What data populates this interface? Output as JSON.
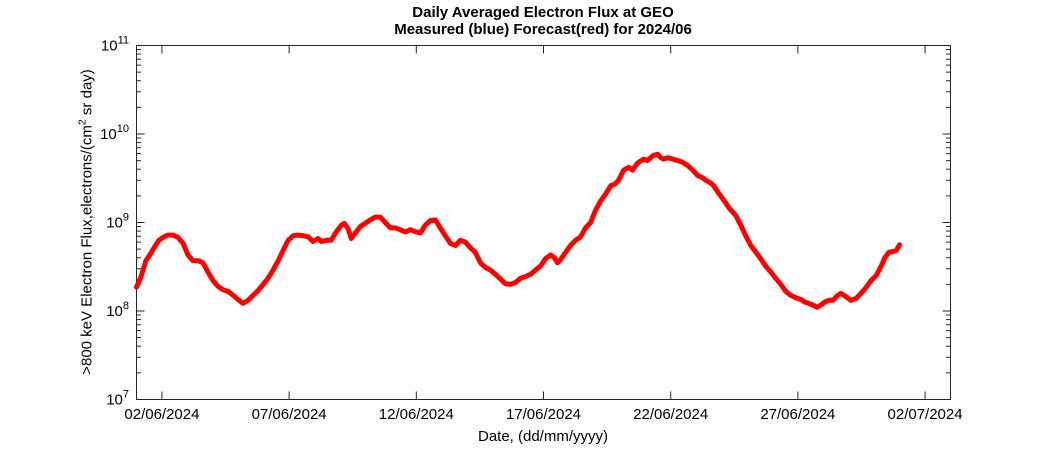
{
  "chart_data": {
    "type": "line",
    "title": "Daily Averaged Electron Flux at GEO",
    "subtitle": "Measured (blue) Forecast(red) for 2024/06",
    "xlabel": "Date, (dd/mm/yyyy)",
    "ylabel": ">800 keV Electron Flux,electrons/(cm^2 sr day)",
    "ylabel_parts": {
      "prefix": ">800 keV Electron Flux,electrons/(cm",
      "superscript": "2",
      "suffix": " sr day)"
    },
    "y_scale": "log",
    "ylim": [
      10000000.0,
      100000000000.0
    ],
    "y_tick_exponents": [
      7,
      8,
      9,
      10,
      11
    ],
    "x_range_days": [
      0,
      32
    ],
    "x_ticks": [
      {
        "day": 1,
        "label": "02/06/2024"
      },
      {
        "day": 6,
        "label": "07/06/2024"
      },
      {
        "day": 11,
        "label": "12/06/2024"
      },
      {
        "day": 16,
        "label": "17/06/2024"
      },
      {
        "day": 21,
        "label": "22/06/2024"
      },
      {
        "day": 26,
        "label": "27/06/2024"
      },
      {
        "day": 31,
        "label": "02/07/2024"
      }
    ],
    "grid": false,
    "legend": [
      {
        "name": "Measured",
        "color": "blue",
        "shown_in_plot": false
      },
      {
        "name": "Forecast",
        "color": "red",
        "shown_in_plot": true
      }
    ],
    "colors": {
      "forecast_line": "#ff0000",
      "axis": "#262626",
      "text": "#000000",
      "background": "#ffffff"
    },
    "series": [
      {
        "name": "Forecast",
        "color": "#ff0000",
        "line_width": 5,
        "points": [
          [
            0.0,
            186000000.0
          ],
          [
            0.17,
            240000000.0
          ],
          [
            0.37,
            370000000.0
          ],
          [
            0.57,
            450000000.0
          ],
          [
            0.69,
            520000000.0
          ],
          [
            0.88,
            630000000.0
          ],
          [
            1.08,
            690000000.0
          ],
          [
            1.24,
            720000000.0
          ],
          [
            1.43,
            720000000.0
          ],
          [
            1.63,
            680000000.0
          ],
          [
            1.83,
            580000000.0
          ],
          [
            2.02,
            430000000.0
          ],
          [
            2.22,
            370000000.0
          ],
          [
            2.42,
            370000000.0
          ],
          [
            2.61,
            350000000.0
          ],
          [
            2.81,
            275000000.0
          ],
          [
            3.01,
            220000000.0
          ],
          [
            3.2,
            190000000.0
          ],
          [
            3.4,
            174000000.0
          ],
          [
            3.6,
            166000000.0
          ],
          [
            3.8,
            150000000.0
          ],
          [
            3.99,
            135000000.0
          ],
          [
            4.19,
            122000000.0
          ],
          [
            4.39,
            132000000.0
          ],
          [
            4.58,
            150000000.0
          ],
          [
            4.78,
            170000000.0
          ],
          [
            4.98,
            200000000.0
          ],
          [
            5.17,
            234000000.0
          ],
          [
            5.37,
            290000000.0
          ],
          [
            5.57,
            370000000.0
          ],
          [
            5.76,
            480000000.0
          ],
          [
            5.96,
            630000000.0
          ],
          [
            6.16,
            710000000.0
          ],
          [
            6.35,
            720000000.0
          ],
          [
            6.55,
            710000000.0
          ],
          [
            6.75,
            690000000.0
          ],
          [
            6.94,
            610000000.0
          ],
          [
            7.14,
            660000000.0
          ],
          [
            7.26,
            610000000.0
          ],
          [
            7.46,
            630000000.0
          ],
          [
            7.65,
            630000000.0
          ],
          [
            7.85,
            780000000.0
          ],
          [
            8.05,
            930000000.0
          ],
          [
            8.17,
            980000000.0
          ],
          [
            8.32,
            850000000.0
          ],
          [
            8.44,
            660000000.0
          ],
          [
            8.6,
            760000000.0
          ],
          [
            8.8,
            900000000.0
          ],
          [
            8.99,
            980000000.0
          ],
          [
            9.19,
            1070000000.0
          ],
          [
            9.39,
            1150000000.0
          ],
          [
            9.58,
            1150000000.0
          ],
          [
            9.78,
            1000000000.0
          ],
          [
            9.98,
            870000000.0
          ],
          [
            10.17,
            870000000.0
          ],
          [
            10.37,
            830000000.0
          ],
          [
            10.57,
            780000000.0
          ],
          [
            10.76,
            830000000.0
          ],
          [
            10.96,
            790000000.0
          ],
          [
            11.16,
            760000000.0
          ],
          [
            11.35,
            930000000.0
          ],
          [
            11.55,
            1050000000.0
          ],
          [
            11.75,
            1070000000.0
          ],
          [
            11.94,
            870000000.0
          ],
          [
            12.14,
            710000000.0
          ],
          [
            12.34,
            580000000.0
          ],
          [
            12.54,
            550000000.0
          ],
          [
            12.73,
            630000000.0
          ],
          [
            12.93,
            600000000.0
          ],
          [
            13.12,
            520000000.0
          ],
          [
            13.32,
            460000000.0
          ],
          [
            13.52,
            350000000.0
          ],
          [
            13.72,
            310000000.0
          ],
          [
            13.91,
            290000000.0
          ],
          [
            14.11,
            260000000.0
          ],
          [
            14.31,
            230000000.0
          ],
          [
            14.5,
            204000000.0
          ],
          [
            14.7,
            200000000.0
          ],
          [
            14.9,
            210000000.0
          ],
          [
            15.09,
            234000000.0
          ],
          [
            15.29,
            245000000.0
          ],
          [
            15.49,
            260000000.0
          ],
          [
            15.68,
            290000000.0
          ],
          [
            15.88,
            320000000.0
          ],
          [
            16.08,
            390000000.0
          ],
          [
            16.28,
            430000000.0
          ],
          [
            16.43,
            400000000.0
          ],
          [
            16.55,
            350000000.0
          ],
          [
            16.67,
            380000000.0
          ],
          [
            16.87,
            460000000.0
          ],
          [
            17.06,
            550000000.0
          ],
          [
            17.26,
            630000000.0
          ],
          [
            17.46,
            690000000.0
          ],
          [
            17.65,
            870000000.0
          ],
          [
            17.85,
            1000000000.0
          ],
          [
            18.05,
            1380000000.0
          ],
          [
            18.24,
            1740000000.0
          ],
          [
            18.44,
            2100000000.0
          ],
          [
            18.64,
            2600000000.0
          ],
          [
            18.83,
            2750000000.0
          ],
          [
            18.95,
            3000000000.0
          ],
          [
            19.15,
            3900000000.0
          ],
          [
            19.35,
            4200000000.0
          ],
          [
            19.5,
            3900000000.0
          ],
          [
            19.62,
            4400000000.0
          ],
          [
            19.74,
            4800000000.0
          ],
          [
            19.94,
            5200000000.0
          ],
          [
            20.09,
            5000000000.0
          ],
          [
            20.21,
            5400000000.0
          ],
          [
            20.33,
            5750000000.0
          ],
          [
            20.49,
            5900000000.0
          ],
          [
            20.61,
            5400000000.0
          ],
          [
            20.72,
            5200000000.0
          ],
          [
            20.88,
            5400000000.0
          ],
          [
            21.08,
            5200000000.0
          ],
          [
            21.28,
            5000000000.0
          ],
          [
            21.47,
            4800000000.0
          ],
          [
            21.67,
            4400000000.0
          ],
          [
            21.87,
            3900000000.0
          ],
          [
            22.06,
            3400000000.0
          ],
          [
            22.26,
            3200000000.0
          ],
          [
            22.38,
            3000000000.0
          ],
          [
            22.57,
            2800000000.0
          ],
          [
            22.69,
            2600000000.0
          ],
          [
            22.89,
            2140000000.0
          ],
          [
            23.09,
            1780000000.0
          ],
          [
            23.28,
            1480000000.0
          ],
          [
            23.4,
            1350000000.0
          ],
          [
            23.56,
            1200000000.0
          ],
          [
            23.76,
            930000000.0
          ],
          [
            23.95,
            710000000.0
          ],
          [
            24.15,
            550000000.0
          ],
          [
            24.35,
            460000000.0
          ],
          [
            24.54,
            390000000.0
          ],
          [
            24.74,
            320000000.0
          ],
          [
            24.94,
            275000000.0
          ],
          [
            25.13,
            234000000.0
          ],
          [
            25.33,
            200000000.0
          ],
          [
            25.53,
            166000000.0
          ],
          [
            25.72,
            150000000.0
          ],
          [
            25.92,
            141000000.0
          ],
          [
            26.12,
            135000000.0
          ],
          [
            26.28,
            126000000.0
          ],
          [
            26.43,
            122000000.0
          ],
          [
            26.63,
            115000000.0
          ],
          [
            26.75,
            110000000.0
          ],
          [
            26.91,
            117000000.0
          ],
          [
            27.06,
            126000000.0
          ],
          [
            27.22,
            132000000.0
          ],
          [
            27.38,
            132000000.0
          ],
          [
            27.54,
            148000000.0
          ],
          [
            27.69,
            158000000.0
          ],
          [
            27.89,
            145000000.0
          ],
          [
            28.09,
            132000000.0
          ],
          [
            28.28,
            138000000.0
          ],
          [
            28.48,
            158000000.0
          ],
          [
            28.68,
            184000000.0
          ],
          [
            28.87,
            220000000.0
          ],
          [
            29.07,
            250000000.0
          ],
          [
            29.27,
            320000000.0
          ],
          [
            29.42,
            400000000.0
          ],
          [
            29.58,
            460000000.0
          ],
          [
            29.74,
            470000000.0
          ],
          [
            29.86,
            480000000.0
          ],
          [
            30.0,
            560000000.0
          ]
        ]
      }
    ]
  }
}
